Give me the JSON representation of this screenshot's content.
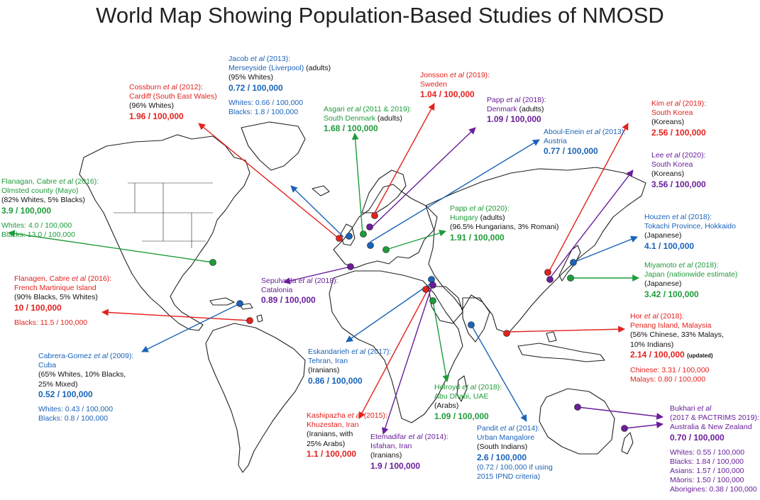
{
  "title": "World Map Showing Population-Based Studies of NMOSD",
  "colors": {
    "red": "#e2221e",
    "blue": "#1a63b8",
    "green": "#1f9b3a",
    "purple": "#6a1e9a",
    "black": "#111111"
  },
  "studies": [
    {
      "id": "cossburn",
      "color": "red",
      "author": "Cossburn",
      "year": "(2012):",
      "lines": [
        "Cardiff (South East Wales)"
      ],
      "notes": [
        "(96% Whites)"
      ],
      "rate": "1.96 / 100,000",
      "extra": []
    },
    {
      "id": "jacob",
      "color": "blue",
      "author": "Jacob",
      "year": "(2013):",
      "lines": [
        "Merseyside (Liverpool)"
      ],
      "inline_note": "(adults)",
      "notes": [
        "(95% Whites)"
      ],
      "rate": "0.72 / 100,000",
      "extra": [
        "Whites: 0.66 / 100,000",
        "Blacks: 1.8 / 100,000"
      ]
    },
    {
      "id": "asgari",
      "color": "green",
      "author": "Asgari",
      "year": "(2011 & 2019):",
      "lines": [
        "South Denmark"
      ],
      "inline_note": "(adults)",
      "notes": [],
      "rate": "1.68 / 100,000",
      "extra": []
    },
    {
      "id": "jonsson",
      "color": "red",
      "author": "Jonsson",
      "year": "(2019):",
      "lines": [
        "Sweden"
      ],
      "notes": [],
      "rate": "1.04 / 100,000",
      "extra": []
    },
    {
      "id": "papp2018",
      "color": "purple",
      "author": "Papp",
      "year": "(2018):",
      "lines": [
        "Denmark"
      ],
      "inline_note": "(adults)",
      "notes": [],
      "rate": "1.09 / 100,000",
      "extra": []
    },
    {
      "id": "abouleneim",
      "color": "blue",
      "author": "Aboul-Enein",
      "year": "(2013):",
      "lines": [
        "Austria"
      ],
      "notes": [],
      "rate": "0.77 / 100,000",
      "extra": []
    },
    {
      "id": "kim",
      "color": "red",
      "author": "Kim",
      "year": "(2019):",
      "lines": [
        "South Korea"
      ],
      "notes": [
        "(Koreans)"
      ],
      "rate": "2.56 / 100,000",
      "extra": []
    },
    {
      "id": "lee",
      "color": "purple",
      "author": "Lee",
      "year": "(2020):",
      "lines": [
        "South Korea"
      ],
      "notes": [
        "(Koreans)"
      ],
      "rate": "3.56 / 100,000",
      "extra": []
    },
    {
      "id": "flanagan_olmsted",
      "color": "green",
      "author": "Flanagan, Cabre",
      "year": "(2016):",
      "lines": [
        "Olmsted county (Mayo)"
      ],
      "notes": [
        "(82% Whites, 5% Blacks)"
      ],
      "rate": "3.9 / 100,000",
      "extra": [
        "Whites: 4.0 / 100,000",
        "Blacks: 13.0 / 100,000"
      ]
    },
    {
      "id": "papp2020",
      "color": "green",
      "author": "Papp",
      "year": "(2020):",
      "lines": [
        "Hungary"
      ],
      "inline_note": "(adults)",
      "notes": [
        "(96.5% Hungarians, 3% Romani)"
      ],
      "rate": "1.91 / 100,000",
      "extra": []
    },
    {
      "id": "houzen",
      "color": "blue",
      "author": "Houzen",
      "year": "(2018):",
      "lines": [
        "Tokachi Province, Hokkaido"
      ],
      "notes": [
        "(Japanese)"
      ],
      "rate": "4.1 / 100,000",
      "extra": []
    },
    {
      "id": "flanagen_martinique",
      "color": "red",
      "author": "Flanagen, Cabre",
      "year": "(2016):",
      "lines": [
        "French Martinique Island"
      ],
      "notes": [
        "(90% Blacks, 5% Whites)"
      ],
      "rate": "10 / 100,000",
      "extra": [
        "Blacks: 11.5 / 100,000"
      ]
    },
    {
      "id": "sepulveda",
      "color": "purple",
      "author": "Sepulveda",
      "year": "(2018):",
      "lines": [
        "Catalonia"
      ],
      "notes": [],
      "rate": "0.89 / 100,000",
      "extra": []
    },
    {
      "id": "miyamoto",
      "color": "green",
      "author": "Miyamoto",
      "year": "(2018):",
      "lines": [
        "Japan (nationwide estimate)"
      ],
      "notes": [
        "(Japanese)"
      ],
      "rate": "3.42 / 100,000",
      "extra": []
    },
    {
      "id": "hor",
      "color": "red",
      "author": "Hor",
      "year": "(2018):",
      "lines": [
        "Penang Island, Malaysia"
      ],
      "notes": [
        "(56% Chinese, 33% Malays,",
        "10% Indians)"
      ],
      "rate": "2.14 / 100,000",
      "rate_note": "(updated)",
      "extra": [
        "Chinese: 3.31 / 100,000",
        "Malays: 0.80 / 100,000"
      ]
    },
    {
      "id": "cabrera",
      "color": "blue",
      "author": "Cabrera-Gomez",
      "year": "(2009):",
      "lines": [
        "Cuba"
      ],
      "notes": [
        "(65% Whites, 10% Blacks,",
        "25% Mixed)"
      ],
      "rate": "0.52 / 100,000",
      "extra": [
        "Whites: 0.43 / 100,000",
        "Blacks: 0.8 / 100,000"
      ]
    },
    {
      "id": "eskandarieh",
      "color": "blue",
      "author": "Eskandarieh",
      "year": "(2017):",
      "lines": [
        "Tehran, Iran"
      ],
      "notes": [
        "(Iranians)"
      ],
      "rate": "0.86 / 100,000",
      "extra": []
    },
    {
      "id": "holroyd",
      "color": "green",
      "author": "Holroyd",
      "year": "(2018):",
      "lines": [
        "Abu Dhabi, UAE"
      ],
      "notes": [
        "(Arabs)"
      ],
      "rate": "1.09 / 100,000",
      "extra": []
    },
    {
      "id": "kashipazha",
      "color": "red",
      "author": "Kashipazha",
      "year": "(2015):",
      "lines": [
        "Khuzestan, Iran"
      ],
      "notes": [
        "(Iranians, with",
        "25% Arabs)"
      ],
      "rate": "1.1 / 100,000",
      "extra": []
    },
    {
      "id": "etemadifar",
      "color": "purple",
      "author": "Etemadifar",
      "year": "(2014):",
      "lines": [
        "Isfahan, Iran"
      ],
      "notes": [
        "(Iranians)"
      ],
      "rate": "1.9 / 100,000",
      "extra": []
    },
    {
      "id": "pandit",
      "color": "blue",
      "author": "Pandit",
      "year": "(2014):",
      "lines": [
        "Urban Mangalore"
      ],
      "notes": [
        "(South Indians)"
      ],
      "rate": "2.6 / 100,000",
      "extra_color": "blue",
      "extra": [
        "(0.72 / 100,000 if using",
        "2015 IPND criteria)"
      ]
    },
    {
      "id": "bukhari",
      "color": "purple",
      "author": "Bukhari",
      "year": "",
      "lines": [
        "(2017 & PACTRIMS 2019):",
        "Australia & New Zealand"
      ],
      "notes": [],
      "rate": "0.70 / 100,000",
      "extra": [
        "Whites: 0.55 / 100,000",
        "Blacks: 1.84 / 100,000",
        "Asians: 1.57 / 100,000",
        "Māoris: 1.50 / 100,000",
        "Aborigines: 0.38 / 100,000"
      ]
    }
  ],
  "et_al": "et al"
}
